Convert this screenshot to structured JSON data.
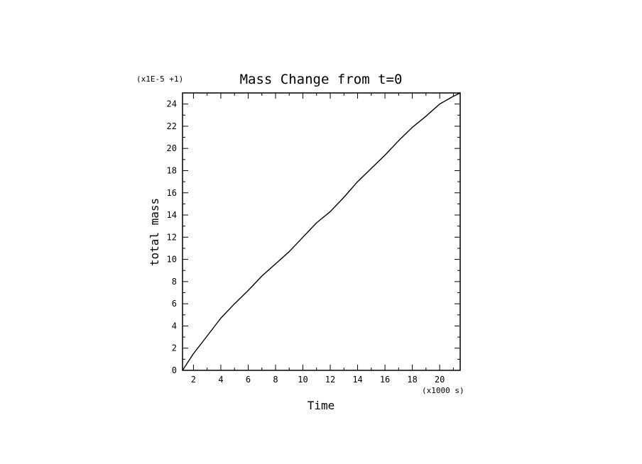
{
  "chart_data": {
    "type": "line",
    "title": "Mass Change from t=0",
    "xlabel": "Time",
    "ylabel": "total mass",
    "x_scale_note": "(x1000 s)",
    "y_scale_note": "(x1E-5 +1)",
    "xlim": [
      1.2,
      21.5
    ],
    "ylim": [
      0,
      25
    ],
    "x_ticks": [
      2,
      4,
      6,
      8,
      10,
      12,
      14,
      16,
      18,
      20
    ],
    "y_ticks": [
      0,
      2,
      4,
      6,
      8,
      10,
      12,
      14,
      16,
      18,
      20,
      22,
      24
    ],
    "grid": false,
    "legend": "none",
    "series": [
      {
        "x": [
          1.2,
          2.0,
          3.0,
          4.0,
          5.0,
          6.0,
          7.0,
          8.0,
          9.0,
          10.0,
          11.0,
          12.0,
          13.0,
          14.0,
          15.0,
          16.0,
          17.0,
          18.0,
          19.0,
          20.0,
          21.0,
          21.5
        ],
        "y": [
          0.0,
          1.5,
          3.1,
          4.7,
          6.0,
          7.2,
          8.5,
          9.6,
          10.7,
          12.0,
          13.3,
          14.3,
          15.6,
          17.0,
          18.2,
          19.4,
          20.7,
          21.9,
          22.9,
          24.0,
          24.7,
          25.0
        ]
      }
    ],
    "line_color": "#000000"
  }
}
